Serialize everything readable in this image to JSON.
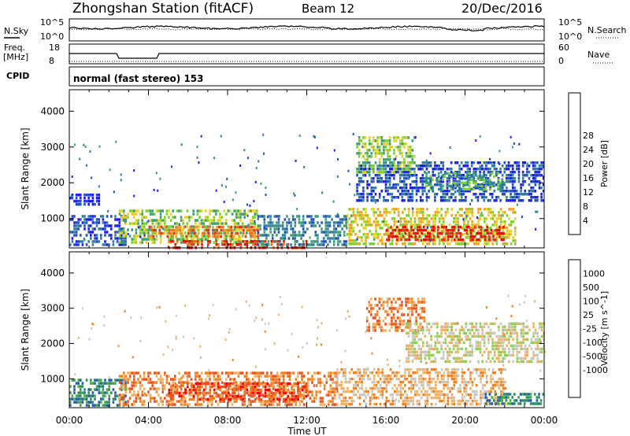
{
  "header": {
    "station": "Zhongshan Station (fitACF)",
    "beam": "Beam 12",
    "date": "20/Dec/2016"
  },
  "strip_labels": {
    "nsky": "N.Sky",
    "nsky_top": "10^5",
    "nsky_bottom": "10^0",
    "nsearch": "N.Search",
    "nsearch_top": "10^5",
    "nsearch_bottom": "10^0",
    "freq": "Freq.",
    "freq_unit": "[MHz]",
    "freq_top": "18",
    "freq_bottom": "8",
    "nave": "Nave",
    "nave_top": "60",
    "nave_bottom": "0",
    "cpid": "CPID",
    "cpid_value": "normal (fast stereo) 153"
  },
  "chart_data": [
    {
      "type": "heatmap",
      "title": "",
      "xlabel": "Time UT",
      "ylabel": "Slant Range [km]",
      "x_ticks": [
        "00:00",
        "04:00",
        "08:00",
        "12:00",
        "16:00",
        "20:00",
        "00:00"
      ],
      "x_range_hours": [
        0,
        24
      ],
      "y_ticks": [
        1000,
        2000,
        3000,
        4000
      ],
      "ylim": [
        180,
        4600
      ],
      "colorbar": {
        "label": "Power [dB]",
        "ticks": [
          "4",
          "8",
          "12",
          "16",
          "20",
          "24",
          "28"
        ],
        "colors": [
          "#1a1aff",
          "#1f4fbf",
          "#2e7fa0",
          "#3aa070",
          "#7fcf2a",
          "#e8d020",
          "#f0a020",
          "#f07020",
          "#e83020",
          "#ff0000"
        ]
      },
      "regions": [
        {
          "t0": 0.0,
          "t1": 2.8,
          "r0": 250,
          "r1": 1100,
          "level": 1
        },
        {
          "t0": 0.0,
          "t1": 1.5,
          "r0": 1400,
          "r1": 1700,
          "level": 0
        },
        {
          "t0": 2.5,
          "t1": 9.5,
          "r0": 300,
          "r1": 1250,
          "level": 4
        },
        {
          "t0": 4.0,
          "t1": 9.5,
          "r0": 450,
          "r1": 800,
          "level": 7
        },
        {
          "t0": 5.0,
          "t1": 12.0,
          "r0": 200,
          "r1": 400,
          "level": 8
        },
        {
          "t0": 9.5,
          "t1": 14.0,
          "r0": 300,
          "r1": 1100,
          "level": 2
        },
        {
          "t0": 14.0,
          "t1": 22.5,
          "r0": 300,
          "r1": 1300,
          "level": 5
        },
        {
          "t0": 16.0,
          "t1": 22.0,
          "r0": 400,
          "r1": 800,
          "level": 9
        },
        {
          "t0": 14.5,
          "t1": 24.0,
          "r0": 1500,
          "r1": 2600,
          "level": 1
        },
        {
          "t0": 14.5,
          "t1": 17.5,
          "r0": 2300,
          "r1": 3300,
          "level": 4
        },
        {
          "t0": 18.0,
          "t1": 22.0,
          "r0": 1800,
          "r1": 2300,
          "level": 3
        }
      ]
    },
    {
      "type": "heatmap",
      "title": "",
      "xlabel": "Time UT",
      "ylabel": "Slant Range [km]",
      "x_ticks": [
        "00:00",
        "04:00",
        "08:00",
        "12:00",
        "16:00",
        "20:00",
        "00:00"
      ],
      "x_range_hours": [
        0,
        24
      ],
      "y_ticks": [
        1000,
        2000,
        3000,
        4000
      ],
      "ylim": [
        180,
        4600
      ],
      "colorbar": {
        "label": "Velocity [m s^-1]",
        "ticks": [
          "1000",
          "500",
          "100",
          "25",
          "-25",
          "-100",
          "-500",
          "-1000"
        ],
        "colors": [
          "#1a1aff",
          "#1f5aaf",
          "#2e8f5a",
          "#3aaf3a",
          "#8fcf4f",
          "#c8c8c0",
          "#f0b060",
          "#f08020",
          "#e85020",
          "#ff0000"
        ]
      },
      "regions": [
        {
          "t0": 0.0,
          "t1": 2.8,
          "r0": 250,
          "r1": 1000,
          "level": 2
        },
        {
          "t0": 2.5,
          "t1": 13.5,
          "r0": 300,
          "r1": 1200,
          "level": 7
        },
        {
          "t0": 5.0,
          "t1": 12.0,
          "r0": 400,
          "r1": 900,
          "level": 8
        },
        {
          "t0": 13.5,
          "t1": 22.0,
          "r0": 300,
          "r1": 1300,
          "level": 6
        },
        {
          "t0": 15.0,
          "t1": 18.0,
          "r0": 2400,
          "r1": 3300,
          "level": 7
        },
        {
          "t0": 17.0,
          "t1": 24.0,
          "r0": 1500,
          "r1": 2600,
          "level": 5
        },
        {
          "t0": 21.0,
          "t1": 24.0,
          "r0": 250,
          "r1": 600,
          "level": 2
        }
      ]
    }
  ]
}
